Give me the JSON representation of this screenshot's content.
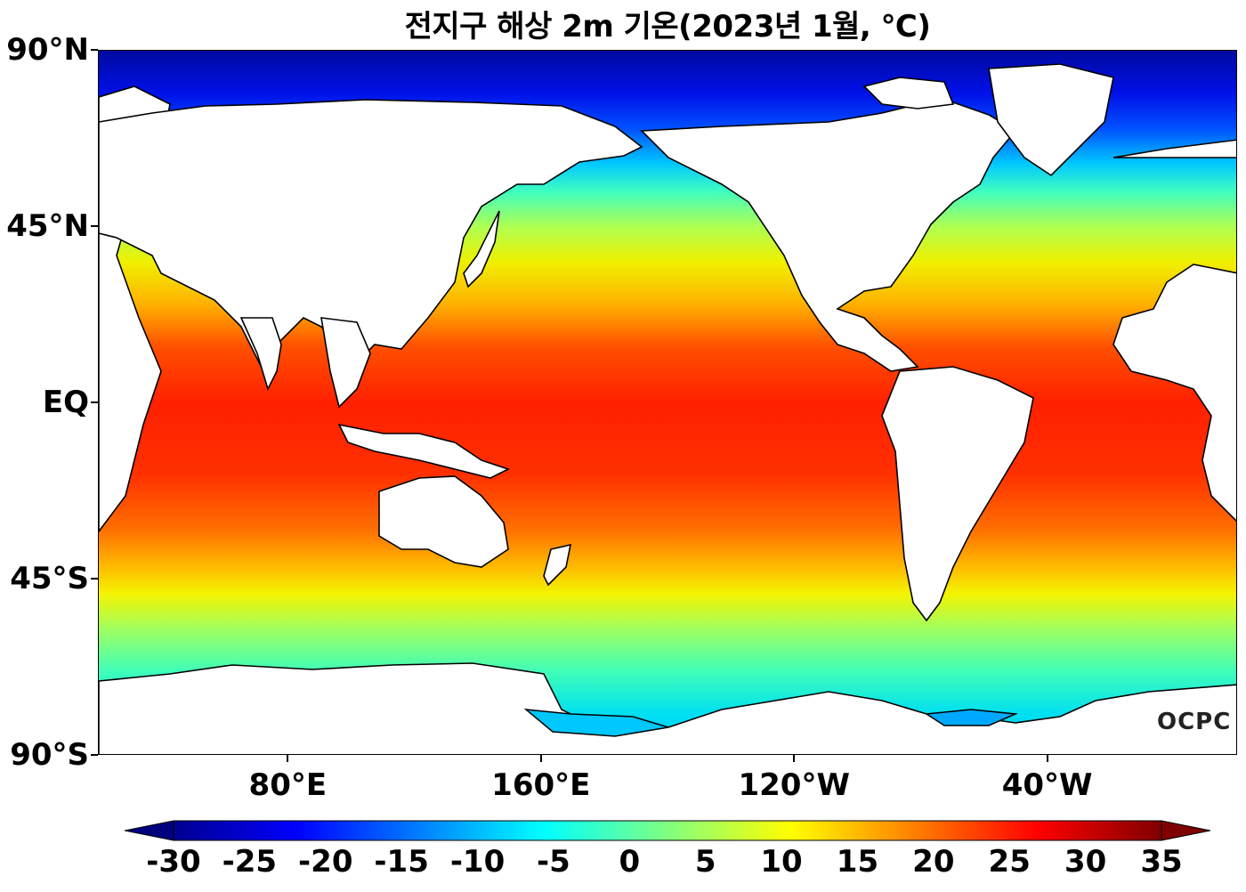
{
  "title": "전지구 해상 2m 기온(2023년 1월, ℃)",
  "lat_labels": [
    {
      "text": "90°N",
      "lat": 90
    },
    {
      "text": "45°N",
      "lat": 45
    },
    {
      "text": "EQ",
      "lat": 0
    },
    {
      "text": "45°S",
      "lat": -45
    },
    {
      "text": "90°S",
      "lat": -90
    }
  ],
  "lon_labels": [
    {
      "text": "80°E",
      "lon": 80
    },
    {
      "text": "160°E",
      "lon": 160
    },
    {
      "text": "120°W",
      "lon": 240
    },
    {
      "text": "40°W",
      "lon": 320
    }
  ],
  "map_extent": {
    "lon_min": 20,
    "lon_max": 380,
    "lat_min": -90,
    "lat_max": 90
  },
  "colorbar": {
    "min": -30,
    "max": 35,
    "ticks": [
      "-30",
      "-25",
      "-20",
      "-15",
      "-10",
      "-5",
      "0",
      "5",
      "10",
      "15",
      "20",
      "25",
      "30",
      "35"
    ],
    "colormap": "jet",
    "extend": "both"
  },
  "logo": "OCPC",
  "colors": {
    "land": "#ffffff",
    "coast": "#000000",
    "cold": "#00007f",
    "warm": "#7f0000"
  }
}
